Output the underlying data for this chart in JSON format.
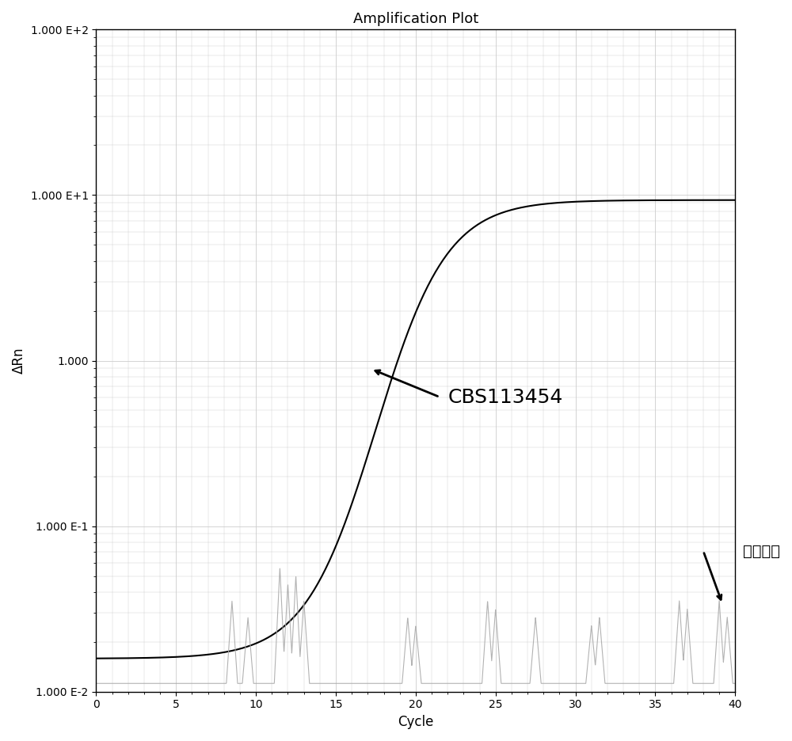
{
  "title": "Amplification Plot",
  "xlabel": "Cycle",
  "ylabel": "ΔRn",
  "xlim": [
    0,
    40
  ],
  "yticks_log": [
    -2,
    -1,
    0,
    1,
    2
  ],
  "ytick_labels": [
    "1.000 E-2",
    "1.000 E-1",
    "1.000",
    "1.000 E+1",
    "1.000 E+2"
  ],
  "xticks": [
    0,
    5,
    10,
    15,
    20,
    25,
    30,
    35,
    40
  ],
  "background_color": "#ffffff",
  "grid_color": "#cccccc",
  "main_curve_color": "#000000",
  "noise_curve_color": "#aaaaaa",
  "annotation_cbs": "CBS113454",
  "annotation_other": "其他菌株",
  "figsize": [
    10.0,
    9.36
  ],
  "dpi": 100
}
